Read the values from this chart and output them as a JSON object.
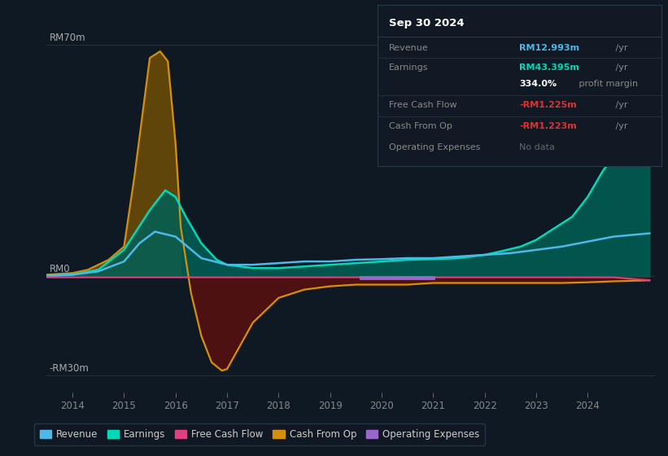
{
  "bg_color": "#0f1923",
  "plot_bg_color": "#0f1923",
  "ylabel_top": "RM70m",
  "ylabel_zero": "RM0",
  "ylabel_bottom": "-RM30m",
  "ylim": [
    -35,
    78
  ],
  "xlim": [
    2013.5,
    2025.3
  ],
  "x_ticks": [
    2014,
    2015,
    2016,
    2017,
    2018,
    2019,
    2020,
    2021,
    2022,
    2023,
    2024
  ],
  "hline_y_values": [
    70,
    0,
    -30
  ],
  "revenue_color": "#4eb8e8",
  "earnings_color": "#00d9b8",
  "earnings_fill_color": "#006055",
  "earnings_neg_fill_color": "#4a0808",
  "free_cash_flow_color": "#e04080",
  "cash_from_op_color": "#d4900a",
  "cash_from_op_pos_fill": "#6a4a08",
  "cash_from_op_neg_fill": "#5a1010",
  "op_expenses_color": "#9966cc",
  "legend_items": [
    {
      "label": "Revenue",
      "color": "#4eb8e8"
    },
    {
      "label": "Earnings",
      "color": "#00d9b8"
    },
    {
      "label": "Free Cash Flow",
      "color": "#e04080"
    },
    {
      "label": "Cash From Op",
      "color": "#d4900a"
    },
    {
      "label": "Operating Expenses",
      "color": "#9966cc"
    }
  ],
  "info_box": {
    "date": "Sep 30 2024",
    "date_color": "#ffffff",
    "bg_color": "#111a24",
    "border_color": "#2a3a4a",
    "sep_color": "#2a3a4a",
    "rows": [
      {
        "label": "Revenue",
        "label_color": "#888888",
        "value": "RM12.993m",
        "value_color": "#4eb8e8",
        "suffix": " /yr",
        "suffix_color": "#888888",
        "extra": null
      },
      {
        "label": "Earnings",
        "label_color": "#888888",
        "value": "RM43.395m",
        "value_color": "#00d9b8",
        "suffix": " /yr",
        "suffix_color": "#888888",
        "extra": "334.0% profit margin"
      },
      {
        "label": "Free Cash Flow",
        "label_color": "#888888",
        "value": "-RM1.225m",
        "value_color": "#dd3333",
        "suffix": " /yr",
        "suffix_color": "#888888",
        "extra": null
      },
      {
        "label": "Cash From Op",
        "label_color": "#888888",
        "value": "-RM1.223m",
        "value_color": "#dd3333",
        "suffix": " /yr",
        "suffix_color": "#888888",
        "extra": null
      },
      {
        "label": "Operating Expenses",
        "label_color": "#888888",
        "value": "No data",
        "value_color": "#666666",
        "suffix": "",
        "suffix_color": "#666666",
        "extra": null
      }
    ]
  },
  "cash_from_op_x": [
    2013.5,
    2014.0,
    2014.3,
    2014.7,
    2015.0,
    2015.2,
    2015.5,
    2015.7,
    2015.85,
    2016.0,
    2016.1,
    2016.3,
    2016.5,
    2016.7,
    2016.9,
    2017.0,
    2017.5,
    2018.0,
    2018.5,
    2019.0,
    2019.5,
    2020.0,
    2020.5,
    2021.0,
    2021.5,
    2022.0,
    2022.5,
    2023.0,
    2023.5,
    2024.0,
    2024.5,
    2025.2
  ],
  "cash_from_op_y": [
    0.5,
    1.0,
    2.0,
    5.0,
    9.0,
    30.0,
    66.0,
    68.0,
    65.0,
    40.0,
    15.0,
    -5.0,
    -18.0,
    -26.0,
    -28.5,
    -28.0,
    -14.0,
    -6.5,
    -4.0,
    -3.0,
    -2.5,
    -2.5,
    -2.5,
    -2.0,
    -2.0,
    -2.0,
    -2.0,
    -2.0,
    -2.0,
    -1.8,
    -1.5,
    -1.2
  ],
  "earnings_x": [
    2013.5,
    2014.0,
    2014.5,
    2015.0,
    2015.5,
    2015.8,
    2016.0,
    2016.2,
    2016.5,
    2016.8,
    2017.0,
    2017.5,
    2018.0,
    2018.5,
    2019.0,
    2019.5,
    2020.0,
    2020.5,
    2021.0,
    2021.5,
    2022.0,
    2022.3,
    2022.7,
    2023.0,
    2023.3,
    2023.7,
    2024.0,
    2024.3,
    2024.7,
    2025.2
  ],
  "earnings_y": [
    0.0,
    0.5,
    2.0,
    8.0,
    20.0,
    26.0,
    24.0,
    18.0,
    10.0,
    5.0,
    3.5,
    2.5,
    2.5,
    3.0,
    3.5,
    4.0,
    4.5,
    5.0,
    5.2,
    5.5,
    6.5,
    7.5,
    9.0,
    11.0,
    14.0,
    18.0,
    24.0,
    32.0,
    40.0,
    43.0
  ],
  "revenue_x": [
    2013.5,
    2014.0,
    2014.5,
    2015.0,
    2015.3,
    2015.6,
    2016.0,
    2016.5,
    2017.0,
    2017.5,
    2018.0,
    2018.5,
    2019.0,
    2019.5,
    2020.0,
    2020.5,
    2021.0,
    2021.5,
    2022.0,
    2022.5,
    2023.0,
    2023.5,
    2024.0,
    2024.5,
    2025.2
  ],
  "revenue_y": [
    0.3,
    0.5,
    1.5,
    4.5,
    10.0,
    13.5,
    12.0,
    5.5,
    3.5,
    3.5,
    4.0,
    4.5,
    4.5,
    5.0,
    5.2,
    5.5,
    5.5,
    6.0,
    6.5,
    7.0,
    8.0,
    9.0,
    10.5,
    12.0,
    13.0
  ],
  "fcf_x": [
    2013.5,
    2014.5,
    2015.5,
    2016.5,
    2017.5,
    2018.5,
    2019.5,
    2020.5,
    2021.5,
    2022.5,
    2023.5,
    2024.5,
    2025.2
  ],
  "fcf_y": [
    -0.3,
    -0.3,
    -0.3,
    -0.3,
    -0.3,
    -0.3,
    -0.3,
    -0.3,
    -0.3,
    -0.3,
    -0.3,
    -0.3,
    -1.2
  ],
  "op_x": [
    2019.6,
    2020.0,
    2020.3,
    2020.7,
    2021.0
  ],
  "op_y": [
    -0.5,
    -0.5,
    -0.5,
    -0.5,
    -0.5
  ]
}
